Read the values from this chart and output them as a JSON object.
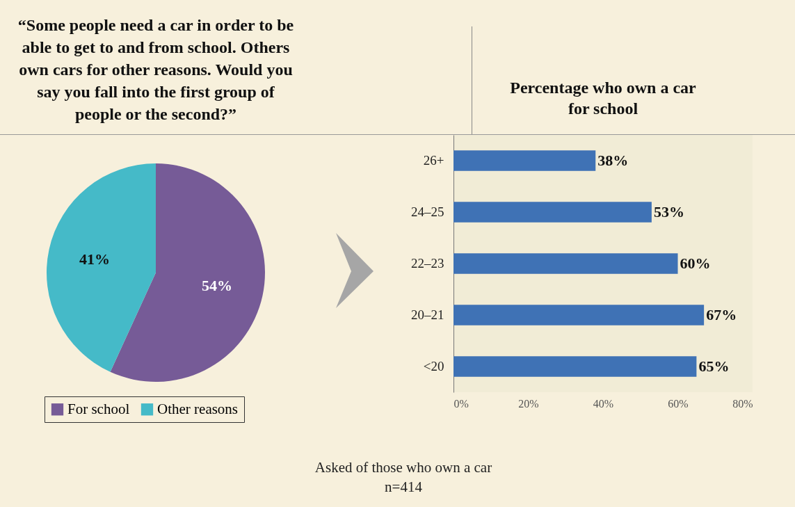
{
  "chart_data": [
    {
      "type": "pie",
      "title": "“Some people need a car in order to be able to get to and from school. Others own cars for other reasons. Would you say you fall into the first group of people or the second?”",
      "categories": [
        "For school",
        "Other reasons"
      ],
      "values": [
        54,
        41
      ],
      "colors": [
        "#765b97",
        "#45bac8"
      ],
      "value_labels": [
        "54%",
        "41%"
      ],
      "legend": "bottom",
      "annotations": [
        "Asked of those who own a car",
        "n=414"
      ]
    },
    {
      "type": "bar",
      "orientation": "horizontal",
      "title": "Percentage who own a car for school",
      "categories": [
        "26+",
        "24–25",
        "22–23",
        "20–21",
        "<20"
      ],
      "values": [
        38,
        53,
        60,
        67,
        65
      ],
      "color": "#3f72b5",
      "value_labels": [
        "38%",
        "53%",
        "60%",
        "67%",
        "65%"
      ],
      "xlim": [
        0,
        80
      ],
      "xticks": [
        {
          "value": 0,
          "label": "0%"
        },
        {
          "value": 20,
          "label": "20%"
        },
        {
          "value": 40,
          "label": "40%"
        },
        {
          "value": 60,
          "label": "60%"
        },
        {
          "value": 80,
          "label": "80%"
        }
      ]
    }
  ]
}
